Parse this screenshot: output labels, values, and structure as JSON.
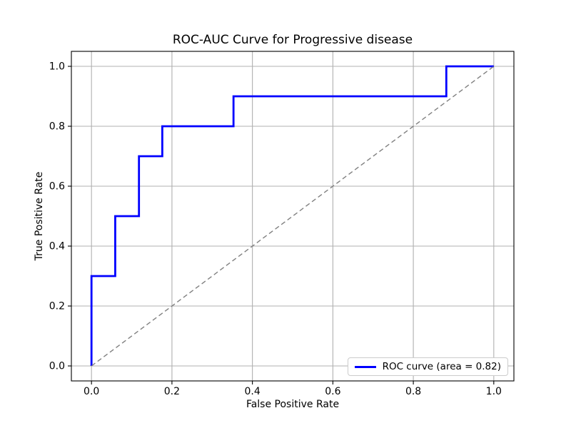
{
  "figure": {
    "background": "#ffffff"
  },
  "chart_data": {
    "type": "line",
    "subtype": "roc-step-curve",
    "title": "ROC-AUC Curve for Progressive disease",
    "xlabel": "False Positive Rate",
    "ylabel": "True Positive Rate",
    "xlim": [
      -0.05,
      1.05
    ],
    "ylim": [
      -0.05,
      1.05
    ],
    "x_ticks": [
      0.0,
      0.2,
      0.4,
      0.6,
      0.8,
      1.0
    ],
    "x_tick_labels": [
      "0.0",
      "0.2",
      "0.4",
      "0.6",
      "0.8",
      "1.0"
    ],
    "y_ticks": [
      0.0,
      0.2,
      0.4,
      0.6,
      0.8,
      1.0
    ],
    "y_tick_labels": [
      "0.0",
      "0.2",
      "0.4",
      "0.6",
      "0.8",
      "1.0"
    ],
    "grid": true,
    "legend_position": "lower right",
    "auc": 0.82,
    "series": [
      {
        "name": "ROC curve (area = 0.82)",
        "color": "#0000ff",
        "style": "solid",
        "line_width": 2.8,
        "in_legend": true,
        "x": [
          0.0,
          0.0,
          0.059,
          0.059,
          0.118,
          0.118,
          0.176,
          0.176,
          0.353,
          0.353,
          0.882,
          0.882,
          1.0
        ],
        "y": [
          0.0,
          0.3,
          0.3,
          0.5,
          0.5,
          0.7,
          0.7,
          0.8,
          0.8,
          0.9,
          0.9,
          1.0,
          1.0
        ]
      },
      {
        "name": "chance-diagonal",
        "color": "#808080",
        "style": "dashed",
        "line_width": 1.4,
        "in_legend": false,
        "x": [
          0.0,
          1.0
        ],
        "y": [
          0.0,
          1.0
        ]
      }
    ],
    "colors": {
      "grid": "#b0b0b0",
      "spine": "#000000",
      "tick": "#000000",
      "legend_border": "#cccccc",
      "legend_bg": "#ffffff",
      "text": "#000000"
    }
  }
}
